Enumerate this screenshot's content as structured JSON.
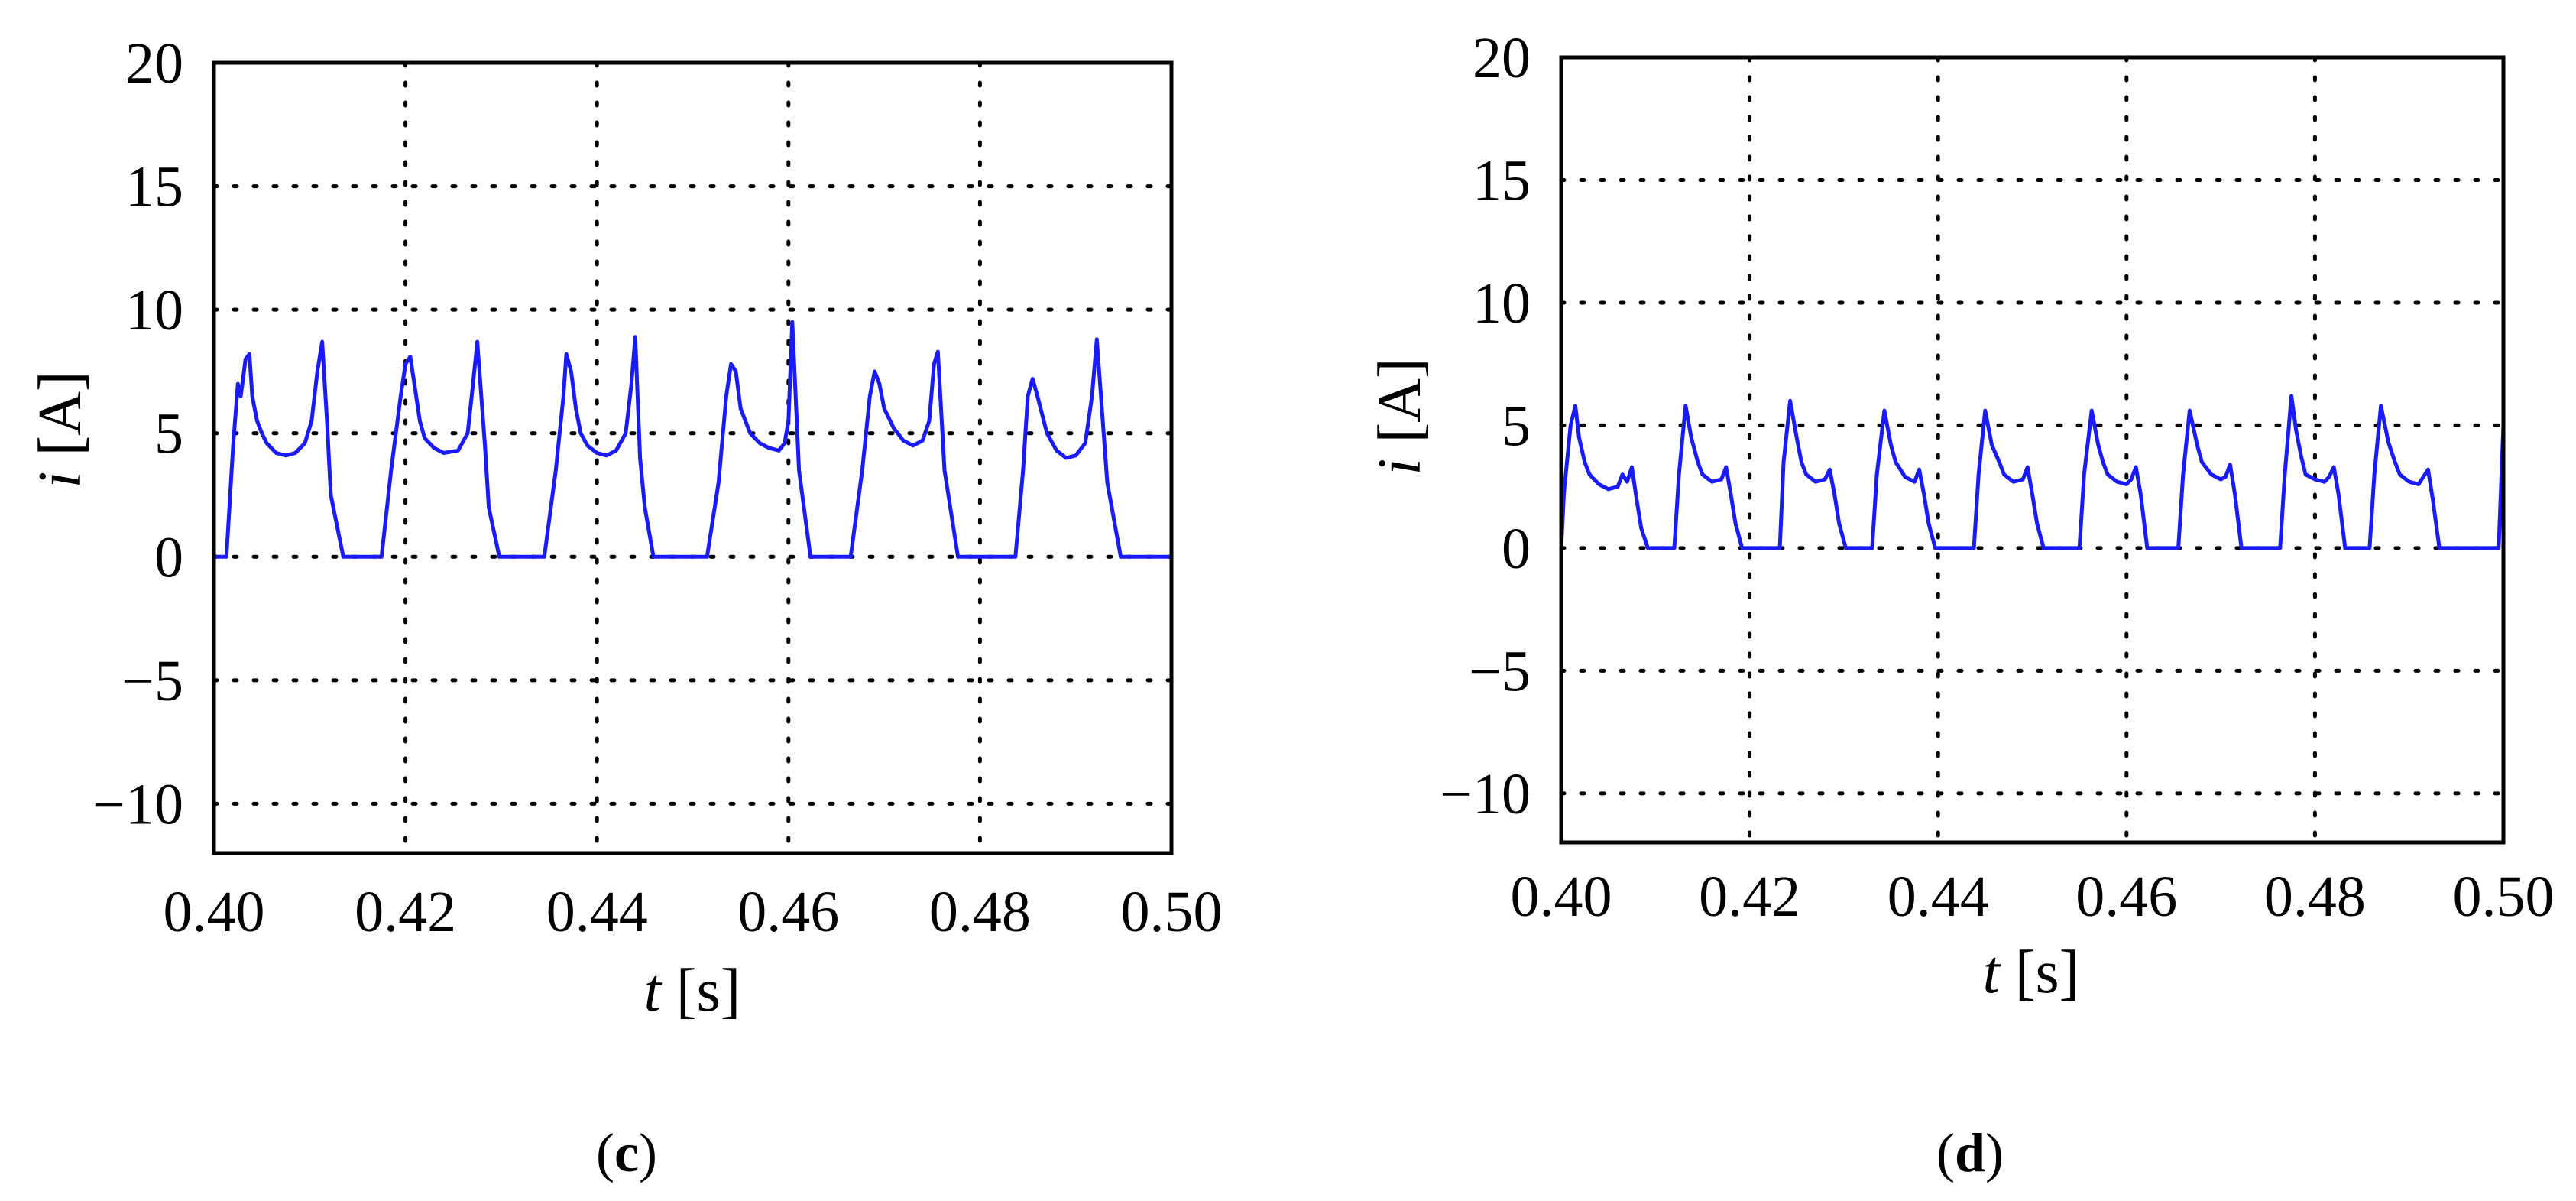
{
  "chart_data": [
    {
      "type": "line",
      "panel_label": "c",
      "xlabel_var": "t",
      "xlabel_unit": "[s]",
      "ylabel_var": "i",
      "ylabel_unit": "[A]",
      "xlim": [
        0.4,
        0.5
      ],
      "ylim": [
        -12,
        20
      ],
      "xticks": [
        0.4,
        0.42,
        0.44,
        0.46,
        0.48,
        0.5
      ],
      "xtick_labels": [
        "0.40",
        "0.42",
        "0.44",
        "0.46",
        "0.48",
        "0.50"
      ],
      "yticks": [
        20,
        15,
        10,
        5,
        0,
        -5,
        -10
      ],
      "ytick_labels": [
        "20",
        "15",
        "10",
        "5",
        "0",
        "−5",
        "−10"
      ],
      "grid": true,
      "series_color": "#1a1aff",
      "series": [
        {
          "x": [
            0.4,
            0.4013,
            0.402,
            0.4025,
            0.4028,
            0.4033,
            0.4037,
            0.404,
            0.4045,
            0.405,
            0.4055,
            0.406,
            0.4065,
            0.4075,
            0.4085,
            0.4095,
            0.4102,
            0.4108,
            0.4113,
            0.4118,
            0.4122,
            0.4135,
            0.4145,
            0.4175,
            0.4185,
            0.4195,
            0.42,
            0.4205,
            0.4212,
            0.4215,
            0.422,
            0.423,
            0.424,
            0.4255,
            0.4265,
            0.427,
            0.4275,
            0.4283,
            0.4287,
            0.4298,
            0.4312,
            0.4345,
            0.4357,
            0.4365,
            0.4368,
            0.4373,
            0.4378,
            0.4383,
            0.439,
            0.44,
            0.441,
            0.442,
            0.443,
            0.4436,
            0.444,
            0.4445,
            0.445,
            0.4459,
            0.447,
            0.4515,
            0.4527,
            0.4535,
            0.454,
            0.4545,
            0.455,
            0.456,
            0.457,
            0.458,
            0.459,
            0.4596,
            0.46,
            0.4604,
            0.4611,
            0.4623,
            0.4665,
            0.4677,
            0.4685,
            0.469,
            0.4695,
            0.47,
            0.471,
            0.472,
            0.473,
            0.474,
            0.4747,
            0.4752,
            0.4756,
            0.4763,
            0.4777,
            0.481,
            0.4837,
            0.4845,
            0.485,
            0.4855,
            0.486,
            0.487,
            0.488,
            0.489,
            0.49,
            0.491,
            0.4917,
            0.4922,
            0.4933,
            0.4947,
            0.5
          ],
          "y": [
            0.0,
            0.0,
            4.5,
            7.0,
            6.5,
            8.0,
            8.2,
            6.5,
            5.5,
            5.0,
            4.6,
            4.4,
            4.2,
            4.1,
            4.2,
            4.6,
            5.5,
            7.5,
            8.7,
            5.5,
            2.5,
            0.0,
            0.0,
            0.0,
            3.5,
            6.5,
            7.8,
            8.1,
            6.3,
            5.5,
            4.8,
            4.4,
            4.2,
            4.3,
            5.0,
            6.8,
            8.7,
            4.5,
            2.0,
            0.0,
            0.0,
            0.0,
            3.5,
            6.5,
            8.2,
            7.5,
            6.0,
            5.0,
            4.5,
            4.2,
            4.1,
            4.3,
            5.0,
            7.0,
            8.9,
            4.0,
            2.0,
            0.0,
            0.0,
            0.0,
            3.0,
            6.5,
            7.8,
            7.5,
            6.0,
            5.0,
            4.6,
            4.4,
            4.3,
            4.6,
            5.5,
            9.5,
            3.5,
            0.0,
            0.0,
            3.5,
            6.5,
            7.5,
            7.0,
            6.0,
            5.2,
            4.7,
            4.5,
            4.7,
            5.5,
            7.8,
            8.3,
            3.5,
            0.0,
            0.0,
            0.0,
            3.5,
            6.5,
            7.2,
            6.5,
            5.0,
            4.3,
            4.0,
            4.1,
            4.6,
            6.5,
            8.8,
            3.0,
            0.0,
            0.0
          ]
        }
      ]
    },
    {
      "type": "line",
      "panel_label": "d",
      "xlabel_var": "t",
      "xlabel_unit": "[s]",
      "ylabel_var": "i",
      "ylabel_unit": "[A]",
      "xlim": [
        0.4,
        0.5
      ],
      "ylim": [
        -12,
        20
      ],
      "xticks": [
        0.4,
        0.42,
        0.44,
        0.46,
        0.48,
        0.5
      ],
      "xtick_labels": [
        "0.40",
        "0.42",
        "0.44",
        "0.46",
        "0.48",
        "0.50"
      ],
      "yticks": [
        20,
        15,
        10,
        5,
        0,
        -5,
        -10
      ],
      "ytick_labels": [
        "20",
        "15",
        "10",
        "5",
        "0",
        "−5",
        "−10"
      ],
      "grid": true,
      "series_color": "#1a1aff",
      "series": [
        {
          "x": [
            0.4,
            0.4003,
            0.401,
            0.4015,
            0.4019,
            0.4025,
            0.403,
            0.404,
            0.405,
            0.406,
            0.4065,
            0.407,
            0.4075,
            0.408,
            0.4085,
            0.4092,
            0.412,
            0.4125,
            0.4132,
            0.4138,
            0.4145,
            0.415,
            0.416,
            0.417,
            0.4175,
            0.418,
            0.4185,
            0.4192,
            0.4232,
            0.4236,
            0.4243,
            0.425,
            0.4255,
            0.426,
            0.427,
            0.428,
            0.4285,
            0.429,
            0.4295,
            0.4302,
            0.433,
            0.4335,
            0.4343,
            0.435,
            0.4355,
            0.4365,
            0.4375,
            0.438,
            0.4385,
            0.439,
            0.4397,
            0.4438,
            0.4443,
            0.445,
            0.4457,
            0.4465,
            0.447,
            0.448,
            0.449,
            0.4495,
            0.45,
            0.4505,
            0.4512,
            0.455,
            0.4555,
            0.4563,
            0.457,
            0.4575,
            0.458,
            0.459,
            0.46,
            0.4605,
            0.461,
            0.4615,
            0.4622,
            0.4655,
            0.466,
            0.4667,
            0.4675,
            0.468,
            0.469,
            0.47,
            0.4705,
            0.471,
            0.4715,
            0.4722,
            0.4763,
            0.4768,
            0.4775,
            0.478,
            0.4785,
            0.479,
            0.48,
            0.481,
            0.4815,
            0.482,
            0.4825,
            0.4832,
            0.4858,
            0.4863,
            0.487,
            0.4878,
            0.4885,
            0.489,
            0.49,
            0.491,
            0.4915,
            0.492,
            0.4925,
            0.4932,
            0.4995,
            0.5
          ],
          "y": [
            0.0,
            2.3,
            5.0,
            5.8,
            4.5,
            3.5,
            3.0,
            2.6,
            2.4,
            2.5,
            3.0,
            2.7,
            3.3,
            2.0,
            0.8,
            0.0,
            0.0,
            3.0,
            5.8,
            4.5,
            3.5,
            3.0,
            2.7,
            2.8,
            3.3,
            2.2,
            1.0,
            0.0,
            0.0,
            3.5,
            6.0,
            4.5,
            3.5,
            3.0,
            2.7,
            2.8,
            3.2,
            2.2,
            1.0,
            0.0,
            0.0,
            3.0,
            5.6,
            4.2,
            3.5,
            2.9,
            2.7,
            3.2,
            2.2,
            1.0,
            0.0,
            0.0,
            3.0,
            5.6,
            4.2,
            3.5,
            3.0,
            2.7,
            2.8,
            3.3,
            2.2,
            1.0,
            0.0,
            0.0,
            3.0,
            5.6,
            4.2,
            3.5,
            3.0,
            2.7,
            2.6,
            2.8,
            3.3,
            2.2,
            0.0,
            0.0,
            3.0,
            5.6,
            4.2,
            3.5,
            3.0,
            2.8,
            2.9,
            3.4,
            2.2,
            0.0,
            0.0,
            3.0,
            6.2,
            4.8,
            3.8,
            3.0,
            2.8,
            2.7,
            2.9,
            3.3,
            2.2,
            0.0,
            0.0,
            3.0,
            5.8,
            4.3,
            3.5,
            3.0,
            2.7,
            2.6,
            2.9,
            3.2,
            2.0,
            0.0,
            0.0,
            5.0
          ]
        }
      ]
    }
  ]
}
